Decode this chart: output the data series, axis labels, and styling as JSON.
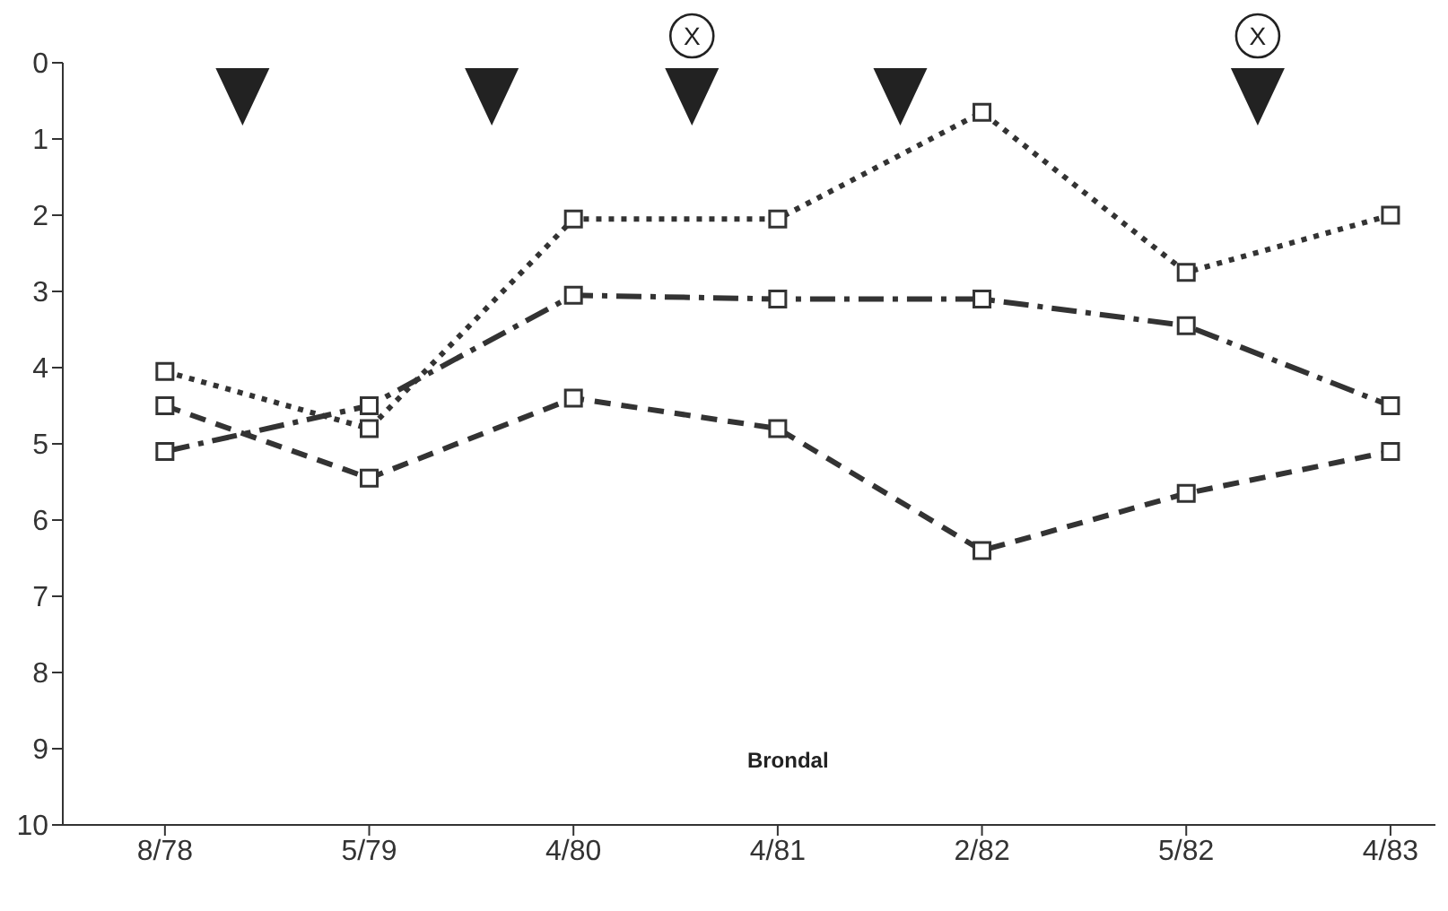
{
  "chart_data": {
    "type": "line",
    "categories": [
      "8/78",
      "5/79",
      "4/80",
      "4/81",
      "2/82",
      "5/82",
      "4/83"
    ],
    "series": [
      {
        "color": "#333333",
        "line_style": "dotted",
        "values": [
          4.05,
          4.8,
          2.05,
          2.05,
          0.65,
          2.75,
          2.0
        ]
      },
      {
        "color": "#333333",
        "line_style": "dashed",
        "values": [
          5.1,
          4.5,
          3.05,
          3.1,
          3.1,
          3.45,
          4.5
        ]
      },
      {
        "color": "#333333",
        "line_style": "dashed",
        "values": [
          4.5,
          5.45,
          4.4,
          4.8,
          6.4,
          5.65,
          5.1
        ]
      }
    ],
    "ylim": [
      10,
      0
    ],
    "yticks": [
      0,
      1,
      2,
      3,
      4,
      5,
      6,
      7,
      8,
      9,
      10
    ],
    "grid": false,
    "legend": false,
    "marker": "square",
    "annotations": [
      "X",
      "X",
      "Brondal"
    ]
  }
}
